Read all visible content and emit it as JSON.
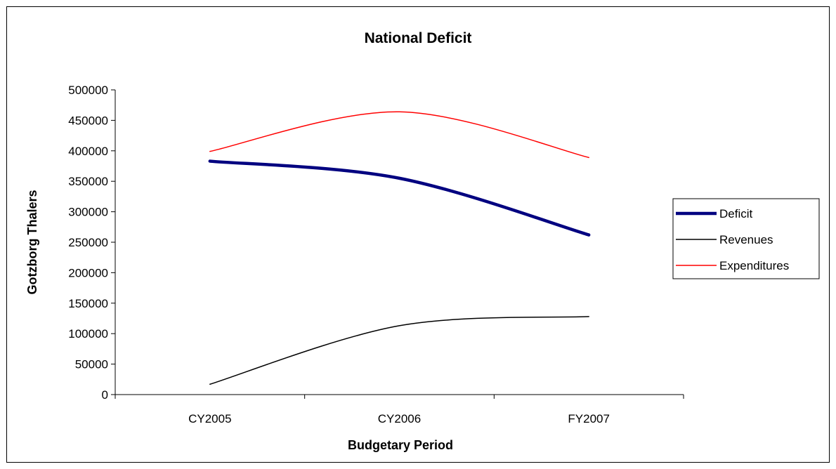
{
  "chart_data": {
    "type": "line",
    "title": "National Deficit",
    "xlabel": "Budgetary Period",
    "ylabel": "Gotzborg Thalers",
    "categories": [
      "CY2005",
      "CY2006",
      "FY2007"
    ],
    "yticks": [
      "0",
      "50000",
      "100000",
      "150000",
      "200000",
      "250000",
      "300000",
      "350000",
      "400000",
      "450000",
      "500000"
    ],
    "ylim": [
      0,
      500000
    ],
    "grid": false,
    "legend_position": "right",
    "series": [
      {
        "name": "Deficit",
        "color": "#000080",
        "line_width": "thick",
        "values": [
          383000,
          355000,
          262000
        ]
      },
      {
        "name": "Revenues",
        "color": "#000000",
        "line_width": "thin",
        "values": [
          17000,
          113000,
          128000
        ]
      },
      {
        "name": "Expenditures",
        "color": "#ff0000",
        "line_width": "thin",
        "values": [
          399000,
          464000,
          389000
        ]
      }
    ]
  }
}
